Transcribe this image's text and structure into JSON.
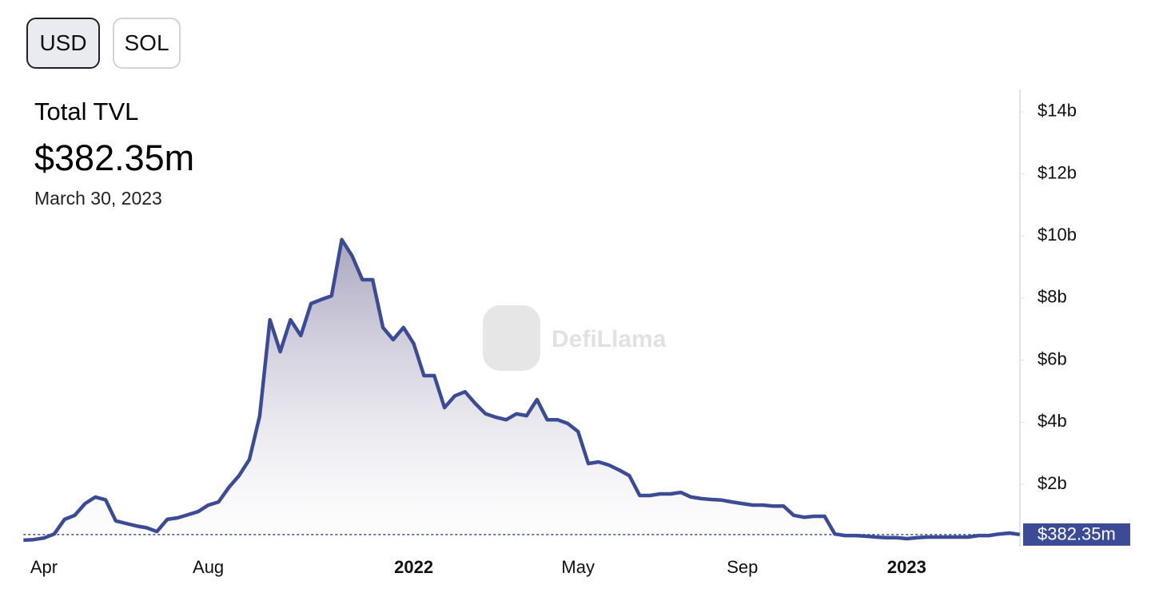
{
  "buttons": [
    "USD",
    "SOL"
  ],
  "header": {
    "title": "Total TVL",
    "value": "$382.35m",
    "date": "March 30, 2023"
  },
  "watermark": "DefiLlama",
  "chart_data": {
    "type": "area",
    "color": "#3c4b95",
    "categories": [
      null,
      null,
      "Apr",
      null,
      null,
      null,
      null,
      null,
      null,
      null,
      null,
      null,
      null,
      null,
      null,
      null,
      null,
      null,
      "Aug",
      null,
      null,
      null,
      null,
      null,
      null,
      null,
      null,
      null,
      null,
      null,
      null,
      null,
      null,
      null,
      null,
      null,
      null,
      null,
      "2022",
      null,
      null,
      null,
      null,
      null,
      null,
      null,
      null,
      null,
      null,
      null,
      null,
      null,
      null,
      null,
      "May",
      null,
      null,
      null,
      null,
      null,
      null,
      null,
      null,
      null,
      null,
      null,
      null,
      null,
      null,
      null,
      "Sep",
      null,
      null,
      null,
      null,
      null,
      null,
      null,
      null,
      null,
      null,
      null,
      null,
      null,
      null,
      null,
      "2023",
      null,
      null,
      null,
      null,
      null,
      null,
      null,
      null,
      null,
      null,
      null
    ],
    "values": [
      0.2,
      0.22,
      0.27,
      0.4,
      0.87,
      1.0,
      1.38,
      1.59,
      1.5,
      0.82,
      0.74,
      0.66,
      0.6,
      0.48,
      0.87,
      0.92,
      1.02,
      1.12,
      1.33,
      1.43,
      1.9,
      2.28,
      2.8,
      4.2,
      7.3,
      6.27,
      7.3,
      6.79,
      7.82,
      7.95,
      8.07,
      9.88,
      9.36,
      8.59,
      8.59,
      7.05,
      6.66,
      7.05,
      6.53,
      5.5,
      5.5,
      4.47,
      4.85,
      4.98,
      4.6,
      4.27,
      4.16,
      4.08,
      4.27,
      4.21,
      4.73,
      4.08,
      4.08,
      3.96,
      3.7,
      2.67,
      2.72,
      2.62,
      2.46,
      2.28,
      1.64,
      1.64,
      1.69,
      1.69,
      1.74,
      1.59,
      1.54,
      1.51,
      1.49,
      1.43,
      1.38,
      1.33,
      1.33,
      1.3,
      1.3,
      1.0,
      0.94,
      0.97,
      0.97,
      0.4,
      0.35,
      0.35,
      0.33,
      0.3,
      0.28,
      0.28,
      0.25,
      0.28,
      0.3,
      0.3,
      0.3,
      0.3,
      0.3,
      0.35,
      0.35,
      0.4,
      0.43,
      0.38235
    ],
    "ylim": [
      0,
      14.7
    ],
    "yticks": [
      {
        "value": 2,
        "label": "$2b"
      },
      {
        "value": 4,
        "label": "$4b"
      },
      {
        "value": 6,
        "label": "$6b"
      },
      {
        "value": 8,
        "label": "$8b"
      },
      {
        "value": 10,
        "label": "$10b"
      },
      {
        "value": 12,
        "label": "$12b"
      },
      {
        "value": 14,
        "label": "$14b"
      }
    ],
    "current": {
      "value": 0.38235,
      "label": "$382.35m"
    }
  }
}
